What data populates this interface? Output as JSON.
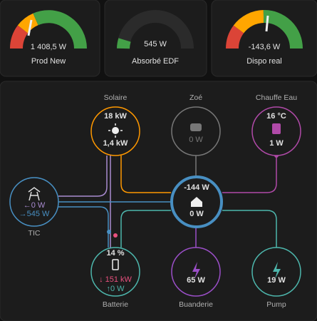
{
  "gauges": [
    {
      "value": "1 408,5 W",
      "name": "Prod New"
    },
    {
      "value": "545 W",
      "name": "Absorbé EDF"
    },
    {
      "value": "-143,6 W",
      "name": "Dispo real"
    }
  ],
  "flow": {
    "solar": {
      "label": "Solaire",
      "top": "18 kW",
      "bottom": "1,4 kW"
    },
    "car": {
      "label": "Zoé",
      "bottom": "0 W"
    },
    "water": {
      "label": "Chauffe Eau",
      "top": "16 °C",
      "bottom": "1 W"
    },
    "grid": {
      "label": "TIC",
      "in": "←0 W",
      "out": "→545 W"
    },
    "home": {
      "top": "-144 W",
      "bottom": "0 W"
    },
    "battery": {
      "label": "Batterie",
      "top": "14 %",
      "in": "↓ 151 kW",
      "out": "↑0 W"
    },
    "laundry": {
      "label": "Buanderie",
      "bottom": "65 W"
    },
    "pump": {
      "label": "Pump",
      "bottom": "19 W"
    }
  }
}
